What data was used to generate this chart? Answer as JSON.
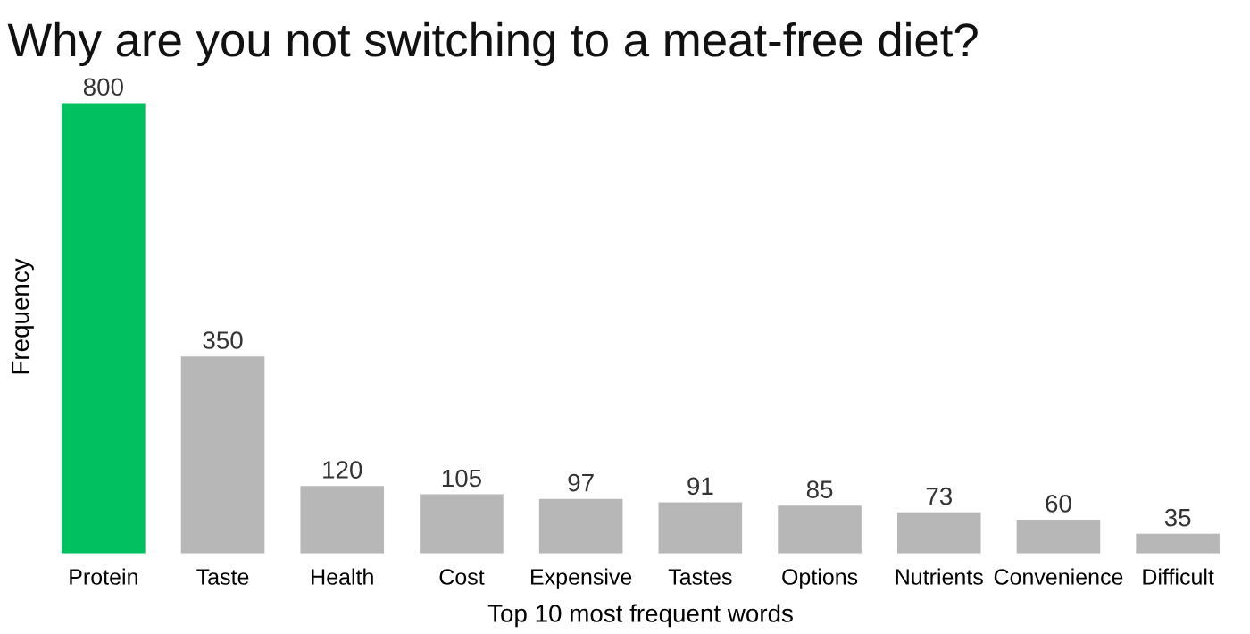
{
  "chart_data": {
    "type": "bar",
    "title": "Why are you not switching to a meat-free diet?",
    "xlabel": "Top 10 most frequent words",
    "ylabel": "Frequency",
    "categories": [
      "Protein",
      "Taste",
      "Health",
      "Cost",
      "Expensive",
      "Tastes",
      "Options",
      "Nutrients",
      "Convenience",
      "Difficult"
    ],
    "values": [
      800,
      350,
      120,
      105,
      97,
      91,
      85,
      73,
      60,
      35
    ],
    "colors": [
      "#00c060",
      "#b7b7b7",
      "#b7b7b7",
      "#b7b7b7",
      "#b7b7b7",
      "#b7b7b7",
      "#b7b7b7",
      "#b7b7b7",
      "#b7b7b7",
      "#b7b7b7"
    ],
    "data_labels": true,
    "grid": false,
    "legend": false
  }
}
